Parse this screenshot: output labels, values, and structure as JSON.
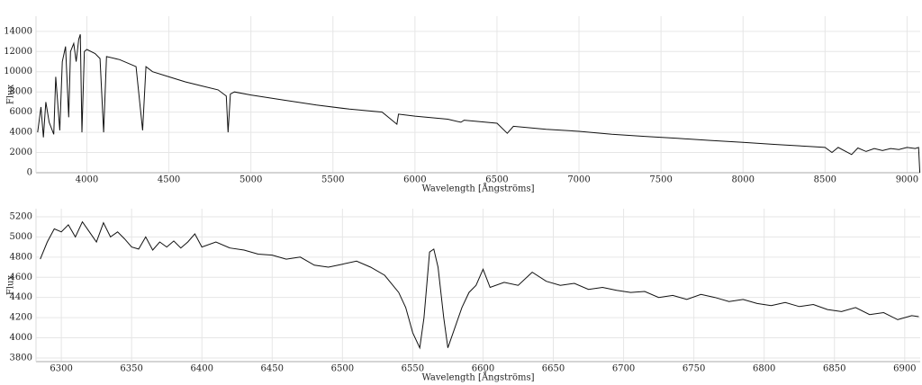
{
  "chart_data": [
    {
      "type": "line",
      "xlabel": "Wavelength [Ångströms]",
      "ylabel": "Flux",
      "grid": true,
      "xlim": [
        3690,
        9080
      ],
      "ylim": [
        0,
        15500
      ],
      "xticks": [
        4000,
        4500,
        5000,
        5500,
        6000,
        6500,
        7000,
        7500,
        8000,
        8500,
        9000
      ],
      "yticks": [
        0,
        2000,
        4000,
        6000,
        8000,
        10000,
        12000,
        14000
      ],
      "series": [
        {
          "color": "#111111",
          "x": [
            3700,
            3720,
            3735,
            3750,
            3770,
            3798,
            3810,
            3835,
            3850,
            3870,
            3889,
            3900,
            3920,
            3935,
            3950,
            3960,
            3970,
            3985,
            4000,
            4050,
            4080,
            4102,
            4120,
            4200,
            4300,
            4340,
            4360,
            4400,
            4500,
            4600,
            4700,
            4800,
            4850,
            4861,
            4875,
            4900,
            5000,
            5200,
            5400,
            5600,
            5800,
            5890,
            5900,
            6000,
            6200,
            6280,
            6300,
            6500,
            6563,
            6600,
            6800,
            7000,
            7200,
            7400,
            7600,
            7800,
            8000,
            8200,
            8400,
            8500,
            8542,
            8580,
            8662,
            8700,
            8750,
            8800,
            8850,
            8900,
            8950,
            9000,
            9050,
            9070,
            9078
          ],
          "values": [
            4000,
            6500,
            3500,
            7000,
            5000,
            3800,
            9500,
            4200,
            11000,
            12500,
            5500,
            12000,
            12800,
            11000,
            13200,
            13700,
            4000,
            12000,
            12200,
            11800,
            11300,
            4000,
            11500,
            11200,
            10500,
            4200,
            10500,
            10000,
            9500,
            9000,
            8600,
            8200,
            7600,
            4000,
            7800,
            8000,
            7700,
            7200,
            6700,
            6300,
            6000,
            4800,
            5800,
            5600,
            5300,
            5000,
            5200,
            4900,
            3900,
            4600,
            4300,
            4100,
            3800,
            3600,
            3400,
            3200,
            3000,
            2800,
            2600,
            2500,
            2000,
            2500,
            1800,
            2450,
            2100,
            2400,
            2200,
            2400,
            2300,
            2500,
            2400,
            2500,
            0
          ]
        }
      ]
    },
    {
      "type": "line",
      "xlabel": "Wavelength [Ångströms]",
      "ylabel": "Flux",
      "grid": true,
      "xlim": [
        6282,
        6911
      ],
      "ylim": [
        3764,
        5280
      ],
      "xticks": [
        6300,
        6350,
        6400,
        6450,
        6500,
        6550,
        6600,
        6650,
        6700,
        6750,
        6800,
        6850,
        6900
      ],
      "yticks": [
        3800,
        4000,
        4200,
        4400,
        4600,
        4800,
        5000,
        5200
      ],
      "series": [
        {
          "color": "#111111",
          "x": [
            6285,
            6290,
            6295,
            6300,
            6305,
            6310,
            6315,
            6320,
            6325,
            6330,
            6335,
            6340,
            6345,
            6350,
            6355,
            6360,
            6365,
            6370,
            6375,
            6380,
            6385,
            6390,
            6395,
            6400,
            6410,
            6420,
            6430,
            6440,
            6450,
            6460,
            6470,
            6480,
            6490,
            6500,
            6510,
            6520,
            6530,
            6540,
            6545,
            6550,
            6555,
            6558,
            6562,
            6565,
            6568,
            6572,
            6575,
            6580,
            6585,
            6590,
            6595,
            6600,
            6605,
            6615,
            6625,
            6635,
            6645,
            6655,
            6665,
            6675,
            6685,
            6695,
            6705,
            6715,
            6725,
            6735,
            6745,
            6755,
            6765,
            6775,
            6785,
            6795,
            6805,
            6815,
            6825,
            6835,
            6845,
            6855,
            6865,
            6875,
            6885,
            6895,
            6905,
            6910
          ],
          "values": [
            4780,
            4950,
            5080,
            5050,
            5120,
            5000,
            5150,
            5050,
            4950,
            5140,
            5000,
            5050,
            4980,
            4900,
            4880,
            5000,
            4870,
            4950,
            4900,
            4960,
            4890,
            4950,
            5030,
            4900,
            4950,
            4890,
            4870,
            4830,
            4820,
            4780,
            4800,
            4720,
            4700,
            4730,
            4760,
            4700,
            4620,
            4450,
            4300,
            4050,
            3900,
            4200,
            4850,
            4880,
            4700,
            4200,
            3900,
            4100,
            4300,
            4450,
            4520,
            4680,
            4500,
            4550,
            4520,
            4650,
            4560,
            4520,
            4540,
            4480,
            4500,
            4470,
            4450,
            4460,
            4400,
            4420,
            4380,
            4430,
            4400,
            4360,
            4380,
            4340,
            4320,
            4350,
            4310,
            4330,
            4280,
            4260,
            4300,
            4230,
            4250,
            4180,
            4220,
            4210
          ]
        }
      ]
    }
  ]
}
